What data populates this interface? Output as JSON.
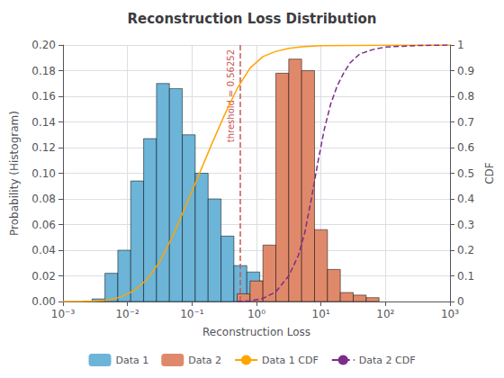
{
  "chart_data": {
    "type": "bar",
    "title": "Reconstruction Loss Distribution",
    "xlabel": "Reconstruction Loss",
    "ylabel": "Probability (Histogram)",
    "y2label": "CDF",
    "log": "x",
    "grid": true,
    "legend": "bottom",
    "xlim": [
      0.001,
      1000
    ],
    "xticks": [
      {
        "value": 0.001,
        "label": "10⁻³"
      },
      {
        "value": 0.01,
        "label": "10⁻²"
      },
      {
        "value": 0.1,
        "label": "10⁻¹"
      },
      {
        "value": 1,
        "label": "10⁰"
      },
      {
        "value": 10,
        "label": "10¹"
      },
      {
        "value": 100,
        "label": "10²"
      },
      {
        "value": 1000,
        "label": "10³"
      }
    ],
    "ylim": [
      0,
      0.2
    ],
    "yticks": [
      {
        "value": 0,
        "label": "0.00"
      },
      0.02,
      0.04,
      0.06,
      0.08,
      {
        "value": 0.1,
        "label": "0.10"
      },
      0.12,
      0.14,
      0.16,
      0.18,
      {
        "value": 0.2,
        "label": "0.20"
      }
    ],
    "y2lim": [
      0,
      1.0
    ],
    "y2ticks": [
      0,
      0.1,
      0.2,
      0.3,
      0.4,
      0.5,
      0.6,
      0.7,
      0.8,
      0.9,
      1
    ],
    "series": [
      {
        "name": "Data 1",
        "type": "bar",
        "color": "#6cb4d8",
        "bins": [
          0.002818382931,
          0.004466835922,
          0.007079457844,
          0.01122018454,
          0.0177827941,
          0.02818382931,
          0.04466835922,
          0.07079457844,
          0.1122018454,
          0.177827941,
          0.2818382931,
          0.4466835922,
          0.7079457844,
          1.122018454,
          1.77827941
        ],
        "values": [
          0.002,
          0.022,
          0.04,
          0.094,
          0.127,
          0.17,
          0.166,
          0.13,
          0.1,
          0.08,
          0.051,
          0.028,
          0.023,
          0.016
        ]
      },
      {
        "name": "Data 2",
        "type": "bar",
        "color": "#e0896a",
        "bins": [
          0.5011872336,
          0.7943282347,
          1.258925412,
          1.995262315,
          3.16227766,
          5.011872336,
          7.943282347,
          12.58925412,
          19.95262315,
          31.6227766,
          50.11872336,
          79.43282347
        ],
        "values": [
          0.006,
          0.016,
          0.044,
          0.178,
          0.189,
          0.18,
          0.056,
          0.025,
          0.007,
          0.005,
          0.003
        ]
      },
      {
        "name": "Data 1 CDF",
        "type": "line",
        "color": "#FFA500",
        "line_style": "solid",
        "axis": "y2",
        "x": [
          0.001,
          0.001995262315,
          0.00316227766,
          0.005011872336,
          0.007943282347,
          0.01258925412,
          0.01995262315,
          0.0316227766,
          0.05011872336,
          0.07943282347,
          0.1258925412,
          0.1995262315,
          0.316227766,
          0.5011872336,
          0.7943282347,
          1.258925412,
          1.995262315,
          3.16227766,
          5.011872336,
          10,
          100,
          1000
        ],
        "values": [
          0.0,
          0.001,
          0.002,
          0.006,
          0.018,
          0.042,
          0.085,
          0.155,
          0.255,
          0.37,
          0.49,
          0.61,
          0.725,
          0.83,
          0.91,
          0.955,
          0.975,
          0.987,
          0.993,
          0.997,
          0.9995,
          1.0
        ]
      },
      {
        "name": "Data 2 CDF",
        "type": "line",
        "color": "#7B2D8B",
        "line_style": "dashed",
        "axis": "y2",
        "x": [
          0.5011872336,
          0.7943282347,
          1.258925412,
          1.995262315,
          3.16227766,
          4.466835922,
          5.623413252,
          7.079457844,
          8.912509381,
          11.22018454,
          14.12537545,
          17.7827941,
          22.38721139,
          28.18382931,
          39.81071706,
          63.09573445,
          100,
          316.227766,
          1000
        ],
        "values": [
          0.0,
          0.003,
          0.012,
          0.038,
          0.1,
          0.18,
          0.27,
          0.4,
          0.54,
          0.67,
          0.77,
          0.84,
          0.89,
          0.93,
          0.965,
          0.982,
          0.992,
          0.998,
          1.0
        ]
      }
    ],
    "annotations": [
      {
        "x": 0.56252,
        "text": "threshold = 0.56252",
        "color": "#cc5555",
        "line_style": "dashed"
      }
    ]
  }
}
